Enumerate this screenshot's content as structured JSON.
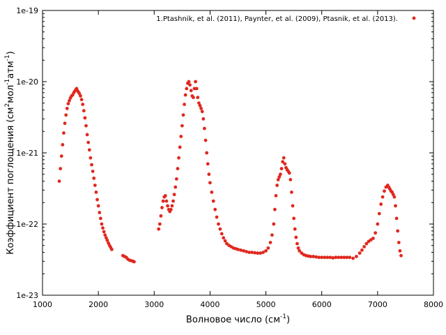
{
  "chart_data": {
    "type": "scatter",
    "xlabel": "Волновое число (см",
    "xlabel_sup": "-1",
    "xlabel_end": ")",
    "ylabel_parts": [
      "Коэффициент поглощения (см",
      "2",
      "мол",
      "-1",
      "атм",
      "-1",
      ")"
    ],
    "xlim": [
      1000,
      8000
    ],
    "ylim": [
      1e-23,
      1e-19
    ],
    "yscale": "log",
    "xticks": [
      1000,
      2000,
      3000,
      4000,
      5000,
      6000,
      7000,
      8000
    ],
    "xtick_labels": [
      "1000",
      "2000",
      "3000",
      "4000",
      "5000",
      "6000",
      "7000",
      "8000"
    ],
    "yticks": [
      1e-23,
      1e-22,
      1e-21,
      1e-20,
      1e-19
    ],
    "ytick_labels": [
      "1e-23",
      "1e-22",
      "1e-21",
      "1e-20",
      "1e-19"
    ],
    "grid": false,
    "legend_position": "top-right",
    "series": [
      {
        "name": "1.Ptashnik, et al. (2011), Paynter, et al. (2009), Ptasnik, et al. (2013).",
        "color": "#e0281e",
        "points": [
          [
            1300,
            4e-22
          ],
          [
            1320,
            6e-22
          ],
          [
            1340,
            9e-22
          ],
          [
            1360,
            1.3e-21
          ],
          [
            1380,
            1.9e-21
          ],
          [
            1400,
            2.6e-21
          ],
          [
            1420,
            3.4e-21
          ],
          [
            1440,
            4.2e-21
          ],
          [
            1460,
            4.9e-21
          ],
          [
            1480,
            5.4e-21
          ],
          [
            1500,
            5.9e-21
          ],
          [
            1520,
            6.3e-21
          ],
          [
            1540,
            6.5e-21
          ],
          [
            1560,
            7e-21
          ],
          [
            1580,
            7.4e-21
          ],
          [
            1600,
            7.8e-21
          ],
          [
            1610,
            8e-21
          ],
          [
            1620,
            7.6e-21
          ],
          [
            1640,
            7.2e-21
          ],
          [
            1660,
            6.8e-21
          ],
          [
            1680,
            6.3e-21
          ],
          [
            1700,
            5.6e-21
          ],
          [
            1720,
            4.8e-21
          ],
          [
            1740,
            3.9e-21
          ],
          [
            1760,
            3.1e-21
          ],
          [
            1780,
            2.4e-21
          ],
          [
            1800,
            1.8e-21
          ],
          [
            1820,
            1.4e-21
          ],
          [
            1840,
            1.1e-21
          ],
          [
            1860,
            8.5e-22
          ],
          [
            1880,
            6.8e-22
          ],
          [
            1900,
            5.5e-22
          ],
          [
            1920,
            4.4e-22
          ],
          [
            1940,
            3.5e-22
          ],
          [
            1960,
            2.8e-22
          ],
          [
            1980,
            2.2e-22
          ],
          [
            2000,
            1.8e-22
          ],
          [
            2020,
            1.45e-22
          ],
          [
            2040,
            1.2e-22
          ],
          [
            2060,
            1e-22
          ],
          [
            2080,
            8.8e-23
          ],
          [
            2100,
            7.8e-23
          ],
          [
            2120,
            7e-23
          ],
          [
            2140,
            6.4e-23
          ],
          [
            2160,
            5.9e-23
          ],
          [
            2180,
            5.4e-23
          ],
          [
            2200,
            5e-23
          ],
          [
            2220,
            4.7e-23
          ],
          [
            2240,
            4.4e-23
          ],
          [
            2440,
            3.6e-23
          ],
          [
            2470,
            3.5e-23
          ],
          [
            2500,
            3.4e-23
          ],
          [
            2530,
            3.2e-23
          ],
          [
            2560,
            3.1e-23
          ],
          [
            2590,
            3.05e-23
          ],
          [
            2620,
            3e-23
          ],
          [
            2640,
            2.95e-23
          ],
          [
            3080,
            8.5e-23
          ],
          [
            3100,
            1e-22
          ],
          [
            3120,
            1.3e-22
          ],
          [
            3140,
            1.7e-22
          ],
          [
            3160,
            2.1e-22
          ],
          [
            3180,
            2.4e-22
          ],
          [
            3200,
            2.5e-22
          ],
          [
            3220,
            2.1e-22
          ],
          [
            3240,
            1.8e-22
          ],
          [
            3260,
            1.6e-22
          ],
          [
            3280,
            1.5e-22
          ],
          [
            3300,
            1.6e-22
          ],
          [
            3320,
            1.8e-22
          ],
          [
            3340,
            2.1e-22
          ],
          [
            3360,
            2.6e-22
          ],
          [
            3380,
            3.3e-22
          ],
          [
            3400,
            4.3e-22
          ],
          [
            3420,
            6e-22
          ],
          [
            3440,
            8.5e-22
          ],
          [
            3460,
            1.2e-21
          ],
          [
            3480,
            1.7e-21
          ],
          [
            3500,
            2.4e-21
          ],
          [
            3520,
            3.4e-21
          ],
          [
            3540,
            4.8e-21
          ],
          [
            3560,
            6.5e-21
          ],
          [
            3580,
            8e-21
          ],
          [
            3600,
            9.5e-21
          ],
          [
            3620,
            1e-20
          ],
          [
            3640,
            9e-21
          ],
          [
            3660,
            7.5e-21
          ],
          [
            3680,
            6.3e-21
          ],
          [
            3700,
            6e-21
          ],
          [
            3720,
            8e-21
          ],
          [
            3740,
            1e-20
          ],
          [
            3760,
            8e-21
          ],
          [
            3780,
            6e-21
          ],
          [
            3800,
            5e-21
          ],
          [
            3820,
            4.6e-21
          ],
          [
            3840,
            4.2e-21
          ],
          [
            3860,
            3.8e-21
          ],
          [
            3880,
            3e-21
          ],
          [
            3900,
            2.2e-21
          ],
          [
            3920,
            1.5e-21
          ],
          [
            3940,
            1e-21
          ],
          [
            3960,
            7e-22
          ],
          [
            3980,
            5e-22
          ],
          [
            4000,
            3.8e-22
          ],
          [
            4030,
            2.8e-22
          ],
          [
            4060,
            2.1e-22
          ],
          [
            4090,
            1.6e-22
          ],
          [
            4120,
            1.25e-22
          ],
          [
            4150,
            1e-22
          ],
          [
            4180,
            8.5e-23
          ],
          [
            4210,
            7.3e-23
          ],
          [
            4240,
            6.4e-23
          ],
          [
            4270,
            5.8e-23
          ],
          [
            4300,
            5.3e-23
          ],
          [
            4340,
            5e-23
          ],
          [
            4380,
            4.8e-23
          ],
          [
            4420,
            4.6e-23
          ],
          [
            4460,
            4.5e-23
          ],
          [
            4500,
            4.4e-23
          ],
          [
            4550,
            4.3e-23
          ],
          [
            4600,
            4.2e-23
          ],
          [
            4650,
            4.1e-23
          ],
          [
            4700,
            4e-23
          ],
          [
            4750,
            4e-23
          ],
          [
            4800,
            3.95e-23
          ],
          [
            4850,
            3.9e-23
          ],
          [
            4900,
            3.9e-23
          ],
          [
            4950,
            4e-23
          ],
          [
            5000,
            4.2e-23
          ],
          [
            5040,
            4.6e-23
          ],
          [
            5080,
            5.5e-23
          ],
          [
            5110,
            7e-23
          ],
          [
            5140,
            1e-22
          ],
          [
            5160,
            1.6e-22
          ],
          [
            5180,
            2.5e-22
          ],
          [
            5200,
            3.5e-22
          ],
          [
            5220,
            4.2e-22
          ],
          [
            5240,
            4.6e-22
          ],
          [
            5260,
            5e-22
          ],
          [
            5280,
            6e-22
          ],
          [
            5300,
            7.5e-22
          ],
          [
            5320,
            8.5e-22
          ],
          [
            5340,
            7e-22
          ],
          [
            5360,
            6.2e-22
          ],
          [
            5380,
            5.8e-22
          ],
          [
            5400,
            5.5e-22
          ],
          [
            5420,
            5.2e-22
          ],
          [
            5440,
            4.2e-22
          ],
          [
            5460,
            2.8e-22
          ],
          [
            5480,
            1.8e-22
          ],
          [
            5500,
            1.2e-22
          ],
          [
            5520,
            8.5e-23
          ],
          [
            5540,
            6.5e-23
          ],
          [
            5560,
            5.3e-23
          ],
          [
            5580,
            4.6e-23
          ],
          [
            5600,
            4.2e-23
          ],
          [
            5640,
            3.9e-23
          ],
          [
            5680,
            3.7e-23
          ],
          [
            5720,
            3.6e-23
          ],
          [
            5760,
            3.55e-23
          ],
          [
            5800,
            3.5e-23
          ],
          [
            5850,
            3.5e-23
          ],
          [
            5900,
            3.45e-23
          ],
          [
            5950,
            3.4e-23
          ],
          [
            6000,
            3.4e-23
          ],
          [
            6050,
            3.4e-23
          ],
          [
            6100,
            3.4e-23
          ],
          [
            6150,
            3.4e-23
          ],
          [
            6200,
            3.35e-23
          ],
          [
            6250,
            3.4e-23
          ],
          [
            6300,
            3.4e-23
          ],
          [
            6350,
            3.4e-23
          ],
          [
            6400,
            3.4e-23
          ],
          [
            6450,
            3.4e-23
          ],
          [
            6500,
            3.4e-23
          ],
          [
            6560,
            3.3e-23
          ],
          [
            6620,
            3.5e-23
          ],
          [
            6680,
            3.9e-23
          ],
          [
            6720,
            4.3e-23
          ],
          [
            6760,
            4.8e-23
          ],
          [
            6800,
            5.3e-23
          ],
          [
            6840,
            5.7e-23
          ],
          [
            6880,
            6e-23
          ],
          [
            6920,
            6.3e-23
          ],
          [
            6960,
            7.5e-23
          ],
          [
            7000,
            1e-22
          ],
          [
            7030,
            1.4e-22
          ],
          [
            7060,
            1.9e-22
          ],
          [
            7090,
            2.4e-22
          ],
          [
            7120,
            2.9e-22
          ],
          [
            7150,
            3.3e-22
          ],
          [
            7180,
            3.5e-22
          ],
          [
            7200,
            3.3e-22
          ],
          [
            7220,
            3.1e-22
          ],
          [
            7240,
            2.9e-22
          ],
          [
            7260,
            2.8e-22
          ],
          [
            7280,
            2.6e-22
          ],
          [
            7300,
            2.4e-22
          ],
          [
            7320,
            1.8e-22
          ],
          [
            7340,
            1.2e-22
          ],
          [
            7360,
            8e-23
          ],
          [
            7380,
            5.5e-23
          ],
          [
            7400,
            4.2e-23
          ],
          [
            7420,
            3.6e-23
          ]
        ]
      }
    ]
  }
}
